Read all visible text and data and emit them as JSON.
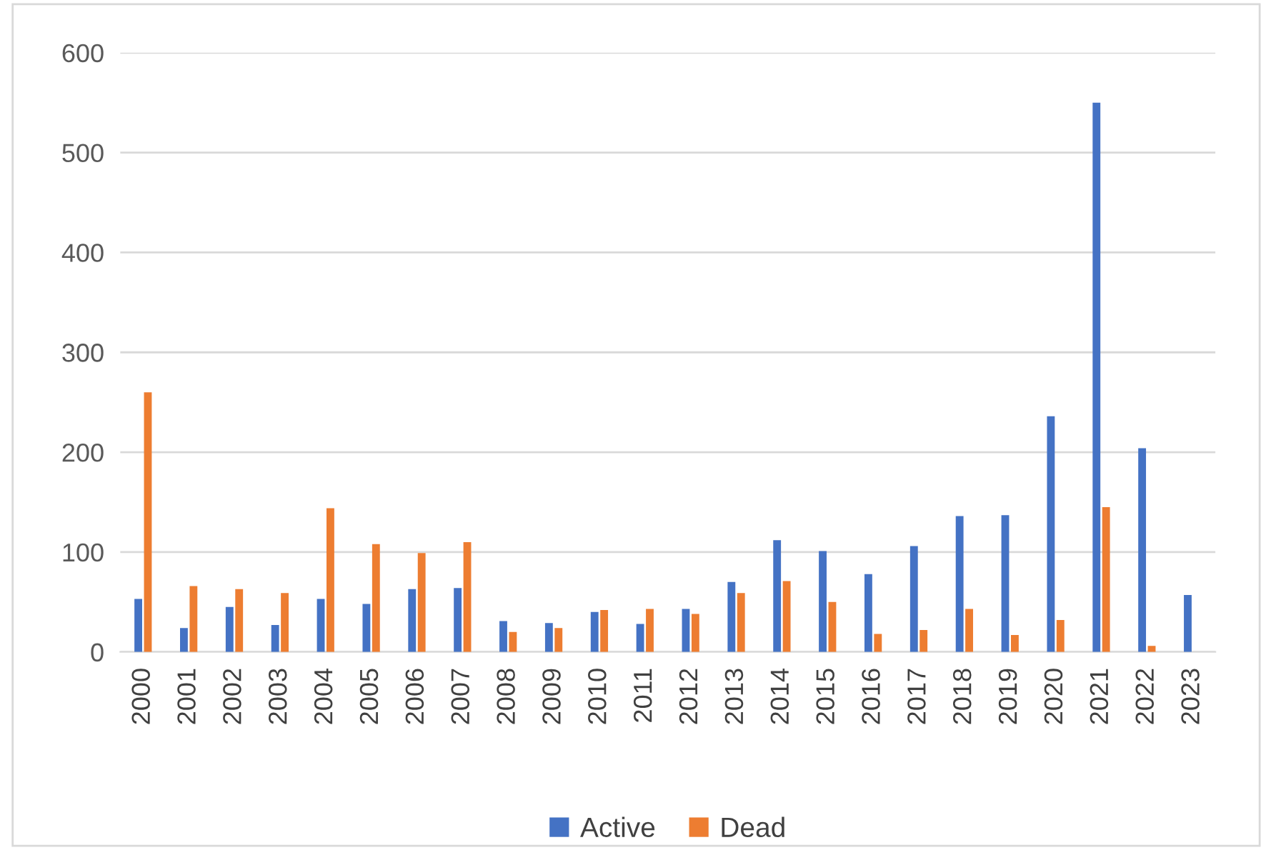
{
  "chart_data": {
    "type": "bar",
    "categories": [
      "2000",
      "2001",
      "2002",
      "2003",
      "2004",
      "2005",
      "2006",
      "2007",
      "2008",
      "2009",
      "2010",
      "2011",
      "2012",
      "2013",
      "2014",
      "2015",
      "2016",
      "2017",
      "2018",
      "2019",
      "2020",
      "2021",
      "2022",
      "2023"
    ],
    "series": [
      {
        "name": "Active",
        "color": "#4472c4",
        "values": [
          53,
          24,
          45,
          27,
          53,
          48,
          63,
          64,
          31,
          29,
          40,
          28,
          43,
          70,
          112,
          101,
          78,
          106,
          136,
          137,
          236,
          550,
          204,
          57
        ]
      },
      {
        "name": "Dead",
        "color": "#ed7d31",
        "values": [
          260,
          66,
          63,
          59,
          144,
          108,
          99,
          110,
          20,
          24,
          42,
          43,
          38,
          59,
          71,
          50,
          18,
          22,
          43,
          17,
          32,
          145,
          6,
          null
        ]
      }
    ],
    "ylim": [
      0,
      600
    ],
    "yticks": [
      0,
      100,
      200,
      300,
      400,
      500,
      600
    ],
    "grid": "y",
    "legend": "bottom"
  }
}
